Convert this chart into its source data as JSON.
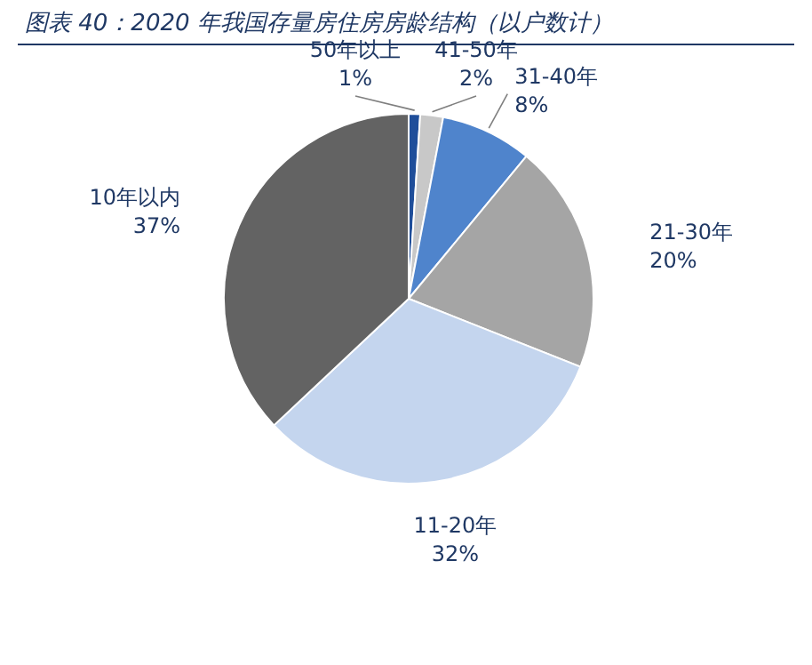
{
  "chart_data": {
    "type": "pie",
    "title": "图表 40：2020 年我国存量房住房房龄结构（以户数计）",
    "categories": [
      "50年以上",
      "41-50年",
      "31-40年",
      "21-30年",
      "11-20年",
      "10年以内"
    ],
    "values": [
      1,
      2,
      8,
      20,
      32,
      37
    ],
    "value_labels": [
      "1%",
      "2%",
      "8%",
      "20%",
      "32%",
      "37%"
    ],
    "colors": [
      "#1f4e9a",
      "#c8c8c8",
      "#4f84cc",
      "#a5a5a5",
      "#c4d5ee",
      "#636363"
    ]
  }
}
